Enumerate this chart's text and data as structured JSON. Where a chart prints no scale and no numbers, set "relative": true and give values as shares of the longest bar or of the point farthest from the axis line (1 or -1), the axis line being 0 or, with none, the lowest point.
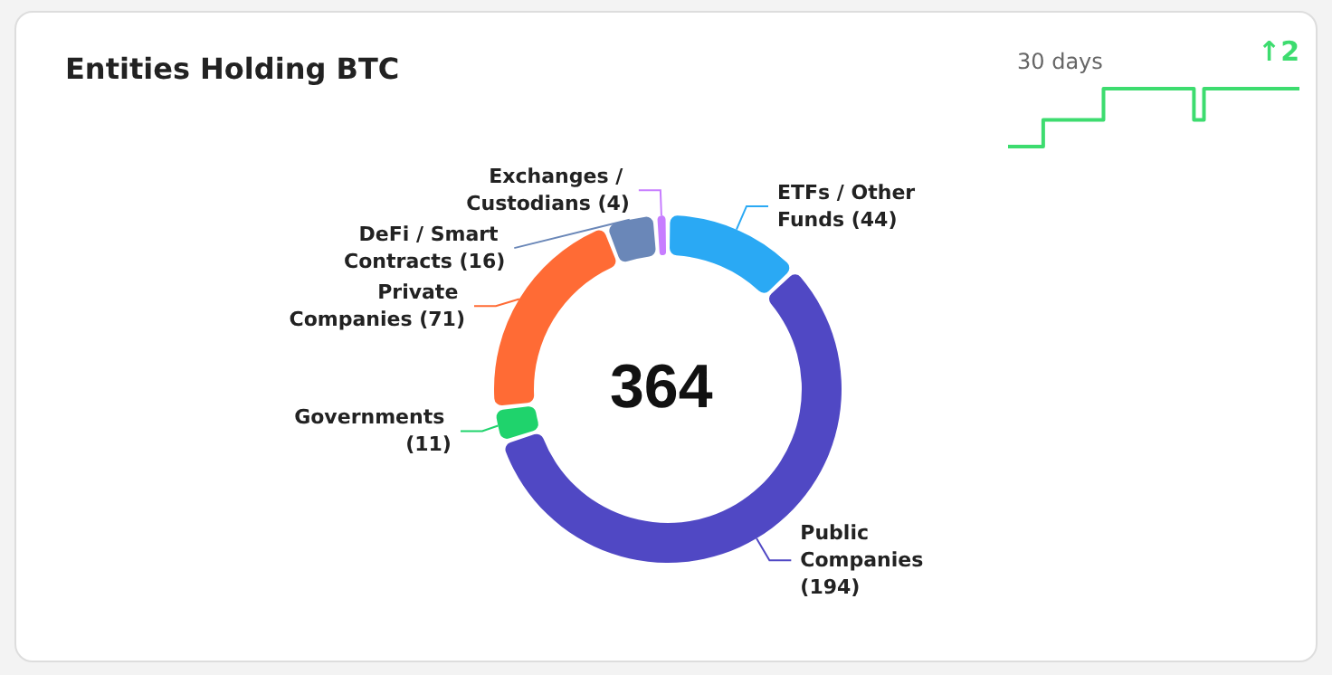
{
  "chart_data": [
    {
      "type": "donut",
      "title": "Entities Holding BTC",
      "categories": [
        "ETFs / Other Funds",
        "Public Companies",
        "Governments",
        "Private Companies",
        "DeFi / Smart Contracts",
        "Exchanges / Custodians"
      ],
      "values": [
        44,
        194,
        11,
        71,
        16,
        4
      ],
      "colors": [
        "#2aa9f4",
        "#5048c4",
        "#1fd36c",
        "#ff6b35",
        "#6a87b8",
        "#c77dff"
      ],
      "value_labels": [
        "(44)",
        "(194)",
        "(11)",
        "(71)",
        "(16)",
        "(4)"
      ],
      "legend": false,
      "annotations": [
        "364"
      ]
    },
    {
      "type": "step",
      "title": "30 days",
      "relative": true,
      "categories": [
        null,
        null,
        null,
        null,
        null,
        null,
        null,
        null,
        null,
        null,
        null,
        null,
        null,
        null,
        null,
        null,
        null,
        null,
        null,
        null,
        null,
        null,
        null,
        null,
        null,
        null,
        null,
        null,
        null,
        null
      ],
      "series": [
        {
          "color": "#3ddc6f",
          "values": [
            0,
            0,
            0,
            0,
            0.46,
            0.46,
            0.46,
            0.46,
            0.46,
            0.46,
            1,
            1,
            1,
            1,
            1,
            1,
            1,
            1,
            1,
            0.46,
            1,
            1,
            1,
            1,
            1,
            1,
            1,
            1,
            1,
            1
          ]
        }
      ],
      "annotations": [
        "↑2"
      ]
    }
  ]
}
